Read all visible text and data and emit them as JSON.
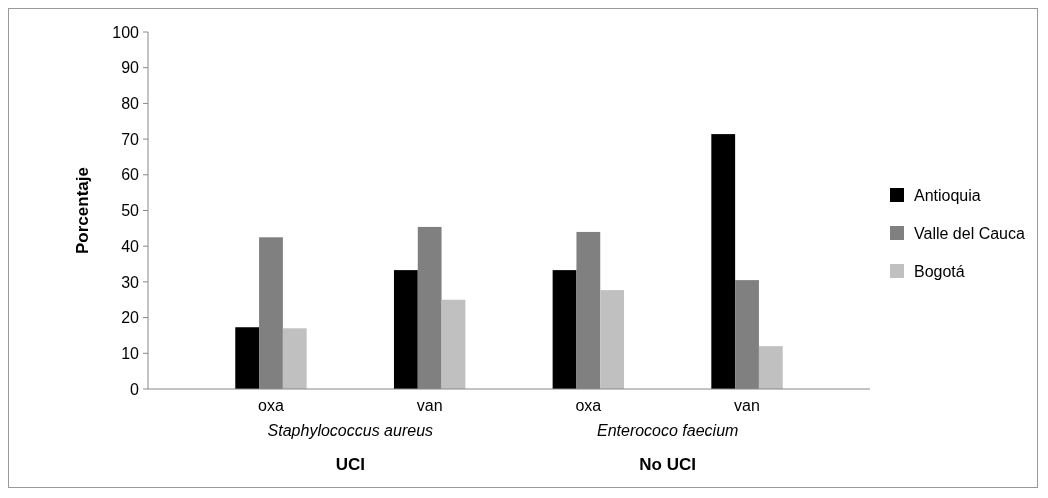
{
  "chart_data": {
    "type": "bar",
    "ylabel": "Porcentaje",
    "categories": [
      "oxa",
      "van",
      "oxa",
      "van"
    ],
    "series": [
      {
        "name": "Antioquia",
        "color": "#000000",
        "values": [
          17.3,
          33.3,
          33.3,
          71.4
        ]
      },
      {
        "name": "Valle del Cauca",
        "color": "#808080",
        "values": [
          42.5,
          45.4,
          44,
          30.5
        ]
      },
      {
        "name": "Bogotá",
        "color": "#c0c0c0",
        "values": [
          17,
          25,
          27.7,
          12
        ]
      }
    ],
    "ylim": [
      0,
      100
    ],
    "yticks": [
      0,
      10,
      20,
      30,
      40,
      50,
      60,
      70,
      80,
      90,
      100
    ],
    "legend": "right",
    "annotations": [
      "Staphylococcus aureus",
      "Enterococo faecium",
      "UCI",
      "No UCI"
    ]
  }
}
